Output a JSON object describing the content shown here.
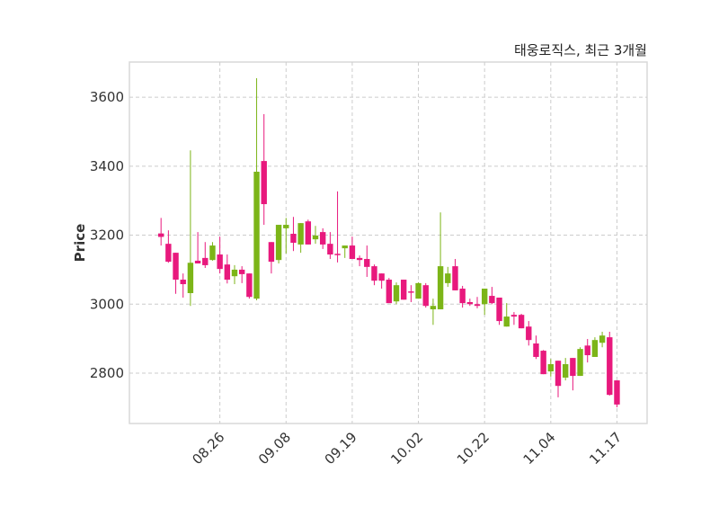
{
  "chart_data": {
    "type": "candlestick",
    "title": "태웅로직스, 최근 3개월",
    "xlabel": "",
    "ylabel": "Price",
    "ylim": [
      2654,
      3702
    ],
    "xlim": [
      -4.3,
      66.1
    ],
    "grid": true,
    "yticks": [
      2800,
      3000,
      3200,
      3400,
      3600
    ],
    "xticks": [
      {
        "index": 8,
        "label": "08.26"
      },
      {
        "index": 17,
        "label": "09.08"
      },
      {
        "index": 26,
        "label": "09.19"
      },
      {
        "index": 35,
        "label": "10.02"
      },
      {
        "index": 44,
        "label": "10.22"
      },
      {
        "index": 53,
        "label": "11.04"
      },
      {
        "index": 62,
        "label": "11.17"
      }
    ],
    "colors": {
      "up": "#7cb518",
      "down": "#e8197d",
      "grid": "#cccccc",
      "frame": "#d9d9d9"
    },
    "ohlc": [
      [
        3205,
        3250,
        3170,
        3195
      ],
      [
        3175,
        3214,
        3120,
        3123
      ],
      [
        3149,
        3149,
        3030,
        3071
      ],
      [
        3071,
        3089,
        3019,
        3058
      ],
      [
        3032,
        3446,
        2995,
        3120
      ],
      [
        3126,
        3209,
        3118,
        3118
      ],
      [
        3134,
        3180,
        3105,
        3113
      ],
      [
        3128,
        3180,
        3126,
        3170
      ],
      [
        3144,
        3196,
        3089,
        3102
      ],
      [
        3115,
        3144,
        3060,
        3071
      ],
      [
        3081,
        3113,
        3058,
        3100
      ],
      [
        3100,
        3110,
        3061,
        3087
      ],
      [
        3089,
        3089,
        3016,
        3021
      ],
      [
        3016,
        3655,
        3011,
        3384
      ],
      [
        3415,
        3551,
        3230,
        3290
      ],
      [
        3180,
        3180,
        3089,
        3123
      ],
      [
        3128,
        3230,
        3118,
        3230
      ],
      [
        3220,
        3250,
        3147,
        3230
      ],
      [
        3204,
        3253,
        3154,
        3178
      ],
      [
        3173,
        3235,
        3149,
        3235
      ],
      [
        3240,
        3245,
        3173,
        3173
      ],
      [
        3188,
        3227,
        3175,
        3199
      ],
      [
        3209,
        3220,
        3160,
        3173
      ],
      [
        3175,
        3209,
        3131,
        3144
      ],
      [
        3146,
        3327,
        3121,
        3144
      ],
      [
        3162,
        3170,
        3134,
        3170
      ],
      [
        3170,
        3196,
        3131,
        3131
      ],
      [
        3134,
        3141,
        3110,
        3128
      ],
      [
        3131,
        3170,
        3079,
        3108
      ],
      [
        3110,
        3115,
        3055,
        3068
      ],
      [
        3089,
        3089,
        3045,
        3068
      ],
      [
        3071,
        3076,
        3003,
        3003
      ],
      [
        3008,
        3063,
        3000,
        3055
      ],
      [
        3071,
        3071,
        3013,
        3013
      ],
      [
        3037,
        3055,
        3006,
        3035
      ],
      [
        3016,
        3063,
        3016,
        3061
      ],
      [
        3055,
        3061,
        2990,
        2995
      ],
      [
        2985,
        3016,
        2940,
        2995
      ],
      [
        2985,
        3266,
        2985,
        3110
      ],
      [
        3061,
        3108,
        3050,
        3089
      ],
      [
        3110,
        3131,
        3040,
        3040
      ],
      [
        3045,
        3053,
        2990,
        3003
      ],
      [
        3006,
        3016,
        2995,
        3000
      ],
      [
        3000,
        3021,
        2988,
        2995
      ],
      [
        3000,
        3045,
        2969,
        3045
      ],
      [
        3024,
        3050,
        3000,
        3003
      ],
      [
        3019,
        3019,
        2940,
        2951
      ],
      [
        2935,
        3003,
        2935,
        2964
      ],
      [
        2969,
        2977,
        2940,
        2964
      ],
      [
        2969,
        2972,
        2930,
        2930
      ],
      [
        2935,
        2951,
        2880,
        2896
      ],
      [
        2886,
        2909,
        2841,
        2847
      ],
      [
        2865,
        2867,
        2797,
        2797
      ],
      [
        2805,
        2841,
        2790,
        2826
      ],
      [
        2836,
        2836,
        2730,
        2763
      ],
      [
        2787,
        2844,
        2779,
        2826
      ],
      [
        2844,
        2844,
        2750,
        2792
      ],
      [
        2792,
        2875,
        2792,
        2870
      ],
      [
        2880,
        2899,
        2831,
        2852
      ],
      [
        2847,
        2904,
        2847,
        2896
      ],
      [
        2888,
        2920,
        2875,
        2909
      ],
      [
        2904,
        2920,
        2735,
        2737
      ],
      [
        2779,
        2779,
        2701,
        2709
      ]
    ]
  }
}
